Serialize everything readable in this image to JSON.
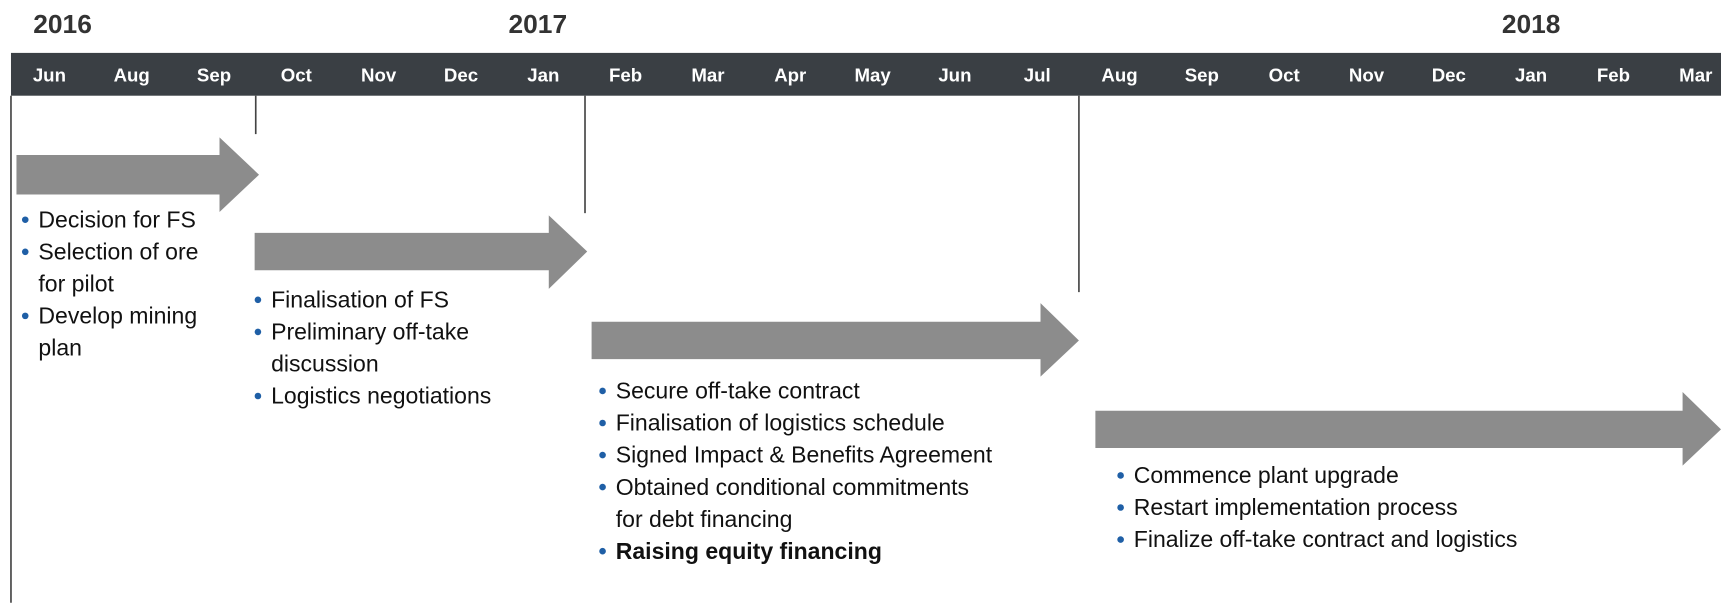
{
  "years": [
    "2016",
    "2017",
    "2018"
  ],
  "months": [
    "Jun",
    "Aug",
    "Sep",
    "Oct",
    "Nov",
    "Dec",
    "Jan",
    "Feb",
    "Mar",
    "Apr",
    "May",
    "Jun",
    "Jul",
    "Aug",
    "Sep",
    "Oct",
    "Nov",
    "Dec",
    "Jan",
    "Feb",
    "Mar"
  ],
  "phases": [
    {
      "items": [
        {
          "lines": [
            "Decision for FS"
          ]
        },
        {
          "lines": [
            "Selection of ore",
            "for pilot"
          ]
        },
        {
          "lines": [
            "Develop mining",
            "plan"
          ]
        }
      ]
    },
    {
      "items": [
        {
          "lines": [
            "Finalisation of FS"
          ]
        },
        {
          "lines": [
            "Preliminary off-take",
            "discussion"
          ]
        },
        {
          "lines": [
            "Logistics negotiations"
          ]
        }
      ]
    },
    {
      "items": [
        {
          "lines": [
            "Secure off-take contract"
          ]
        },
        {
          "lines": [
            "Finalisation of logistics schedule"
          ]
        },
        {
          "lines": [
            "Signed Impact & Benefits Agreement"
          ]
        },
        {
          "lines": [
            "Obtained conditional commitments",
            "for debt financing"
          ]
        },
        {
          "lines": [
            "Raising equity financing"
          ],
          "bold": true
        }
      ]
    },
    {
      "items": [
        {
          "lines": [
            "Commence plant upgrade"
          ]
        },
        {
          "lines": [
            "Restart implementation process"
          ]
        },
        {
          "lines": [
            "Finalize off-take contract and logistics"
          ]
        }
      ]
    }
  ]
}
